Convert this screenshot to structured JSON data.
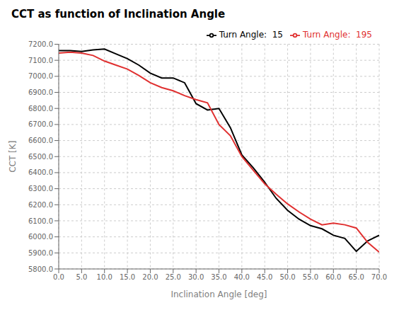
{
  "chart_data": {
    "type": "line",
    "title": "CCT as function of Inclination Angle",
    "xlabel": "Inclination Angle [deg]",
    "ylabel": "CCT [K]",
    "x": [
      0.0,
      2.5,
      5.0,
      7.5,
      10.0,
      12.5,
      15.0,
      17.5,
      20.0,
      22.5,
      25.0,
      27.5,
      30.0,
      32.5,
      35.0,
      37.5,
      40.0,
      42.5,
      45.0,
      47.5,
      50.0,
      52.5,
      55.0,
      57.5,
      60.0,
      62.5,
      65.0,
      67.5,
      70.0
    ],
    "series": [
      {
        "name": "Turn Angle:  15",
        "color": "#000000",
        "values": [
          7160,
          7160,
          7155,
          7165,
          7170,
          7140,
          7110,
          7070,
          7020,
          6990,
          6990,
          6960,
          6830,
          6790,
          6800,
          6680,
          6510,
          6430,
          6340,
          6240,
          6165,
          6110,
          6070,
          6050,
          6010,
          5990,
          5910,
          5975,
          6010
        ]
      },
      {
        "name": "Turn Angle:  195",
        "color": "#e03030",
        "values": [
          7145,
          7150,
          7145,
          7130,
          7095,
          7070,
          7045,
          7005,
          6960,
          6930,
          6910,
          6880,
          6855,
          6835,
          6700,
          6630,
          6500,
          6415,
          6330,
          6265,
          6205,
          6155,
          6110,
          6075,
          6085,
          6075,
          6055,
          5965,
          5905
        ]
      }
    ],
    "xlim": [
      0.0,
      70.0
    ],
    "ylim": [
      5800.0,
      7200.0
    ],
    "xticks": [
      {
        "value": 0,
        "label": "0.0"
      },
      {
        "value": 5,
        "label": "5.0"
      },
      {
        "value": 10,
        "label": "10.0"
      },
      {
        "value": 15,
        "label": "15.0"
      },
      {
        "value": 20,
        "label": "20.0"
      },
      {
        "value": 25,
        "label": "25.0"
      },
      {
        "value": 30,
        "label": "30.0"
      },
      {
        "value": 35,
        "label": "35.0"
      },
      {
        "value": 40,
        "label": "40.0"
      },
      {
        "value": 45,
        "label": "45.0"
      },
      {
        "value": 50,
        "label": "50.0"
      },
      {
        "value": 55,
        "label": "55.0"
      },
      {
        "value": 60,
        "label": "60.0"
      },
      {
        "value": 65,
        "label": "65.0"
      },
      {
        "value": 70,
        "label": "70.0"
      }
    ],
    "yticks": [
      {
        "value": 5800,
        "label": "5800.0"
      },
      {
        "value": 5900,
        "label": "5900.0"
      },
      {
        "value": 6000,
        "label": "6000.0"
      },
      {
        "value": 6100,
        "label": "6100.0"
      },
      {
        "value": 6200,
        "label": "6200.0"
      },
      {
        "value": 6300,
        "label": "6300.0"
      },
      {
        "value": 6400,
        "label": "6400.0"
      },
      {
        "value": 6500,
        "label": "6500.0"
      },
      {
        "value": 6600,
        "label": "6600.0"
      },
      {
        "value": 6700,
        "label": "6700.0"
      },
      {
        "value": 6800,
        "label": "6800.0"
      },
      {
        "value": 6900,
        "label": "6900.0"
      },
      {
        "value": 7000,
        "label": "7000.0"
      },
      {
        "value": 7100,
        "label": "7100.0"
      },
      {
        "value": 7200,
        "label": "7200.0"
      }
    ],
    "grid": true,
    "legend": "upper right"
  }
}
